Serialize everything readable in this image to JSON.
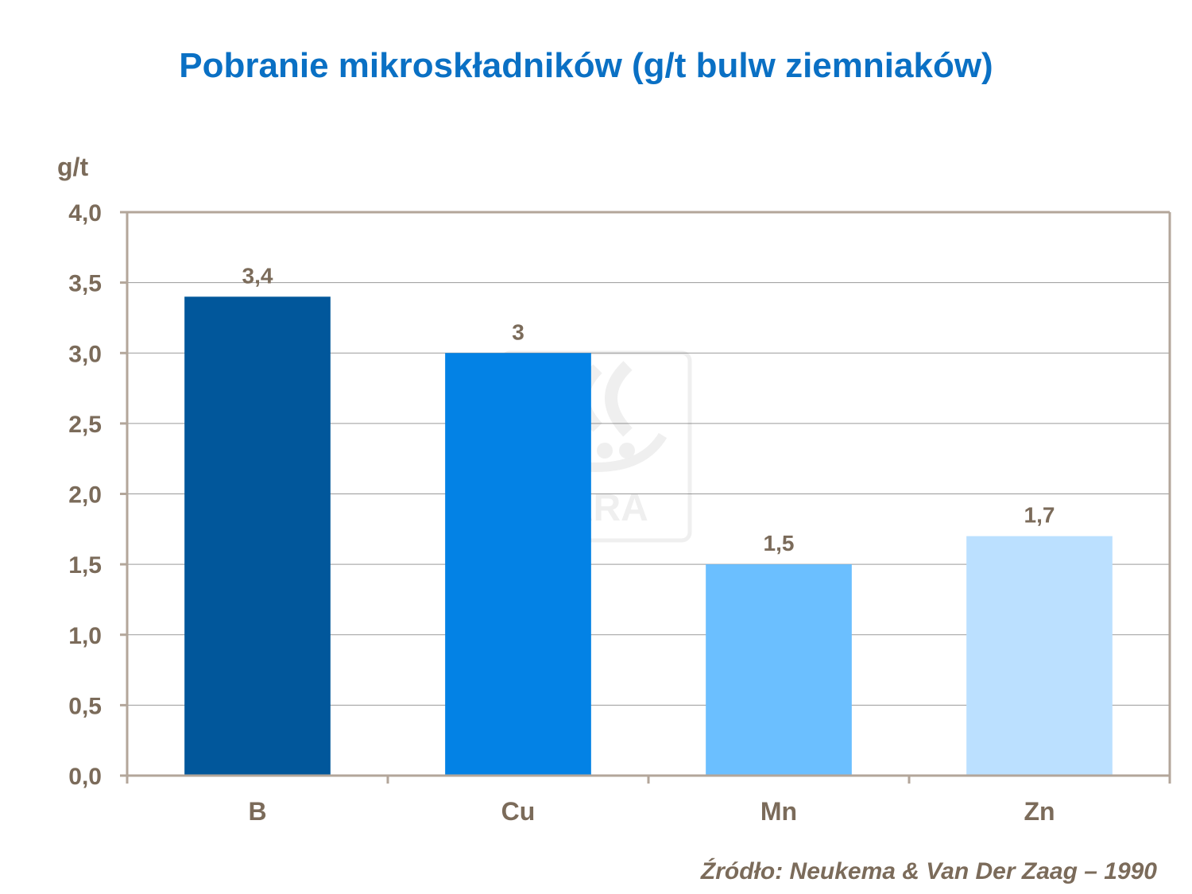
{
  "title": "Pobranie mikroskładników (g/t bulw ziemniaków)",
  "source": "Źródło: Neukema  & Van Der Zaag – 1990",
  "watermark": {
    "text": "YARA"
  },
  "chart_data": {
    "type": "bar",
    "title": "Pobranie mikroskładników (g/t bulw ziemniaków)",
    "xlabel": "",
    "ylabel": "g/t",
    "categories": [
      "B",
      "Cu",
      "Mn",
      "Zn"
    ],
    "values": [
      3.4,
      3.0,
      1.5,
      1.7
    ],
    "data_labels": [
      "3,4",
      "3",
      "1,5",
      "1,7"
    ],
    "bar_colors": [
      "#01579B",
      "#0382E5",
      "#6BBFFF",
      "#BBE0FF"
    ],
    "ylim": [
      0,
      4
    ],
    "yticks": [
      0,
      0.5,
      1,
      1.5,
      2,
      2.5,
      3,
      3.5,
      4
    ],
    "ytick_labels": [
      "0,0",
      "0,5",
      "1,0",
      "1,5",
      "2,0",
      "2,5",
      "3,0",
      "3,5",
      "4,0"
    ],
    "grid": true,
    "legend": "none"
  },
  "colors": {
    "title": "#0A70C4",
    "axis_text": "#7B6B5A",
    "grid": "#9A9A9A",
    "frame": "#B3A69A"
  }
}
